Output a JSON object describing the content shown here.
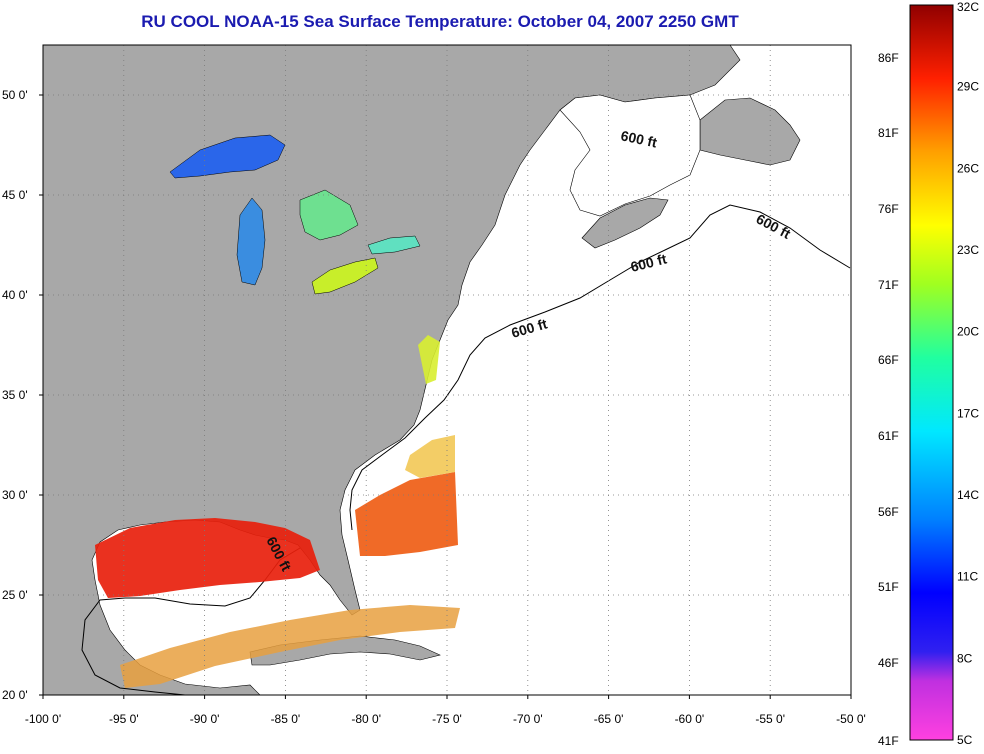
{
  "title": "RU COOL  NOAA-15  Sea Surface Temperature:  October 04, 2007 2250 GMT",
  "map": {
    "x_ticks": [
      "-100 0'",
      "-95 0'",
      "-90 0'",
      "-85 0'",
      "-80 0'",
      "-75 0'",
      "-70 0'",
      "-65 0'",
      "-60 0'",
      "-55 0'",
      "-50 0'"
    ],
    "y_ticks": [
      "50 0'",
      "45 0'",
      "40 0'",
      "35 0'",
      "30 0'",
      "25 0'",
      "20 0'"
    ],
    "land_color": "#a8a8a8",
    "ocean_color": "#ffffff",
    "grid": "dotted",
    "contour_labels": [
      "600 ft",
      "600 ft",
      "600 ft",
      "600 ft",
      "600 ft"
    ]
  },
  "colorbar": {
    "fahrenheit_labels": [
      "86F",
      "81F",
      "76F",
      "71F",
      "66F",
      "61F",
      "56F",
      "51F",
      "46F",
      "41F"
    ],
    "celsius_labels": [
      "32C",
      "29C",
      "26C",
      "23C",
      "20C",
      "17C",
      "14C",
      "11C",
      "8C",
      "5C"
    ],
    "range_c": [
      5,
      32
    ],
    "colors": [
      "#ff40e0",
      "#8a30d8",
      "#1010ff",
      "#00a0ff",
      "#00ffff",
      "#30ff90",
      "#a0ff20",
      "#ffff00",
      "#ffb000",
      "#ff6000",
      "#ff1000",
      "#a00000"
    ]
  }
}
